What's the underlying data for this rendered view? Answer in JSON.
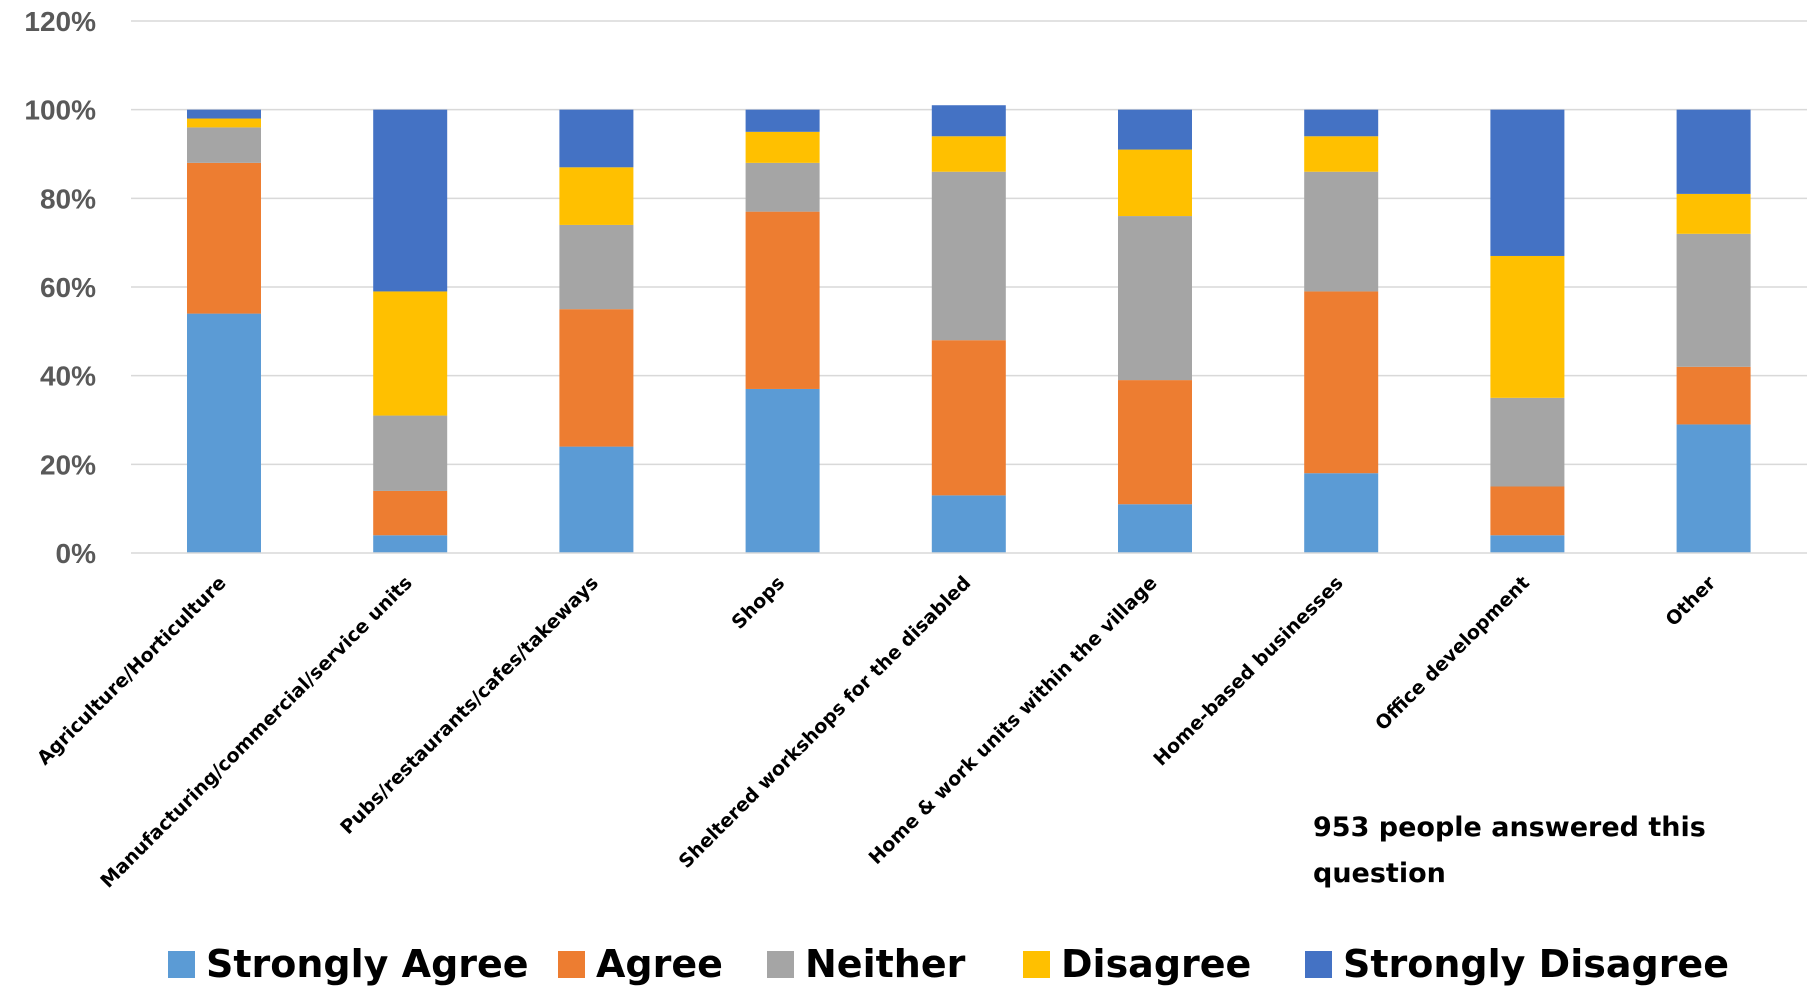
{
  "chart_data": {
    "type": "bar",
    "stacked": true,
    "categories": [
      "Agriculture/Horticulture",
      "Manufacturing/commercial/service units",
      "Pubs/restaurants/cafes/takeways",
      "Shops",
      "Sheltered workshops for the disabled",
      "Home & work units within the village",
      "Home-based businesses",
      "Office development",
      "Other"
    ],
    "series": [
      {
        "name": "Strongly Agree",
        "color": "#5B9BD5",
        "values": [
          54,
          4,
          24,
          37,
          13,
          11,
          18,
          4,
          29
        ]
      },
      {
        "name": "Agree",
        "color": "#ED7D31",
        "values": [
          34,
          10,
          31,
          40,
          35,
          28,
          41,
          11,
          13
        ]
      },
      {
        "name": "Neither",
        "color": "#A5A5A5",
        "values": [
          8,
          17,
          19,
          11,
          38,
          37,
          27,
          20,
          30
        ]
      },
      {
        "name": "Disagree",
        "color": "#FFC000",
        "values": [
          2,
          28,
          13,
          7,
          8,
          15,
          8,
          32,
          9
        ]
      },
      {
        "name": "Strongly Disagree",
        "color": "#4472C4",
        "values": [
          2,
          41,
          13,
          5,
          7,
          9,
          6,
          33,
          19
        ]
      }
    ],
    "y_ticks": [
      "0%",
      "20%",
      "40%",
      "60%",
      "80%",
      "100%",
      "120%"
    ],
    "ylim": [
      0,
      120
    ],
    "grid": true,
    "legend_position": "bottom",
    "annotation": [
      "953 people answered this",
      "question"
    ]
  }
}
